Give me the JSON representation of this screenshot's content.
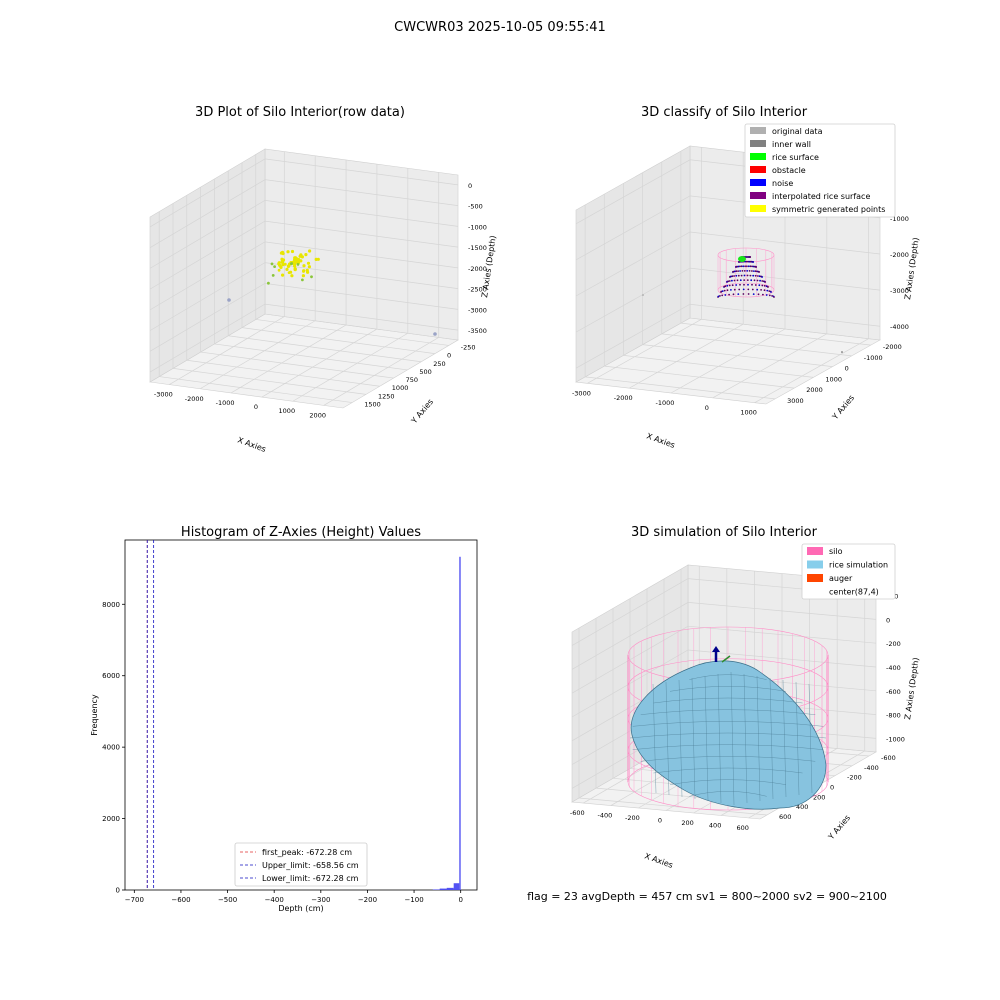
{
  "suptitle": "CWCWR03 2025-10-05 09:55:41",
  "status_line": "flag = 23  avgDepth = 457 cm  sv1 = 800~2000  sv2 = 900~2100",
  "chart_data": [
    {
      "type": "scatter3d",
      "title": "3D Plot of Silo Interior(row data)",
      "xlabel": "X Axies",
      "ylabel": "Y Axies",
      "zlabel": "Z Axies (Depth)",
      "x_ticks": [
        "-3000",
        "-2000",
        "-1000",
        "0",
        "1000",
        "2000"
      ],
      "y_ticks": [
        "-250",
        "0",
        "250",
        "500",
        "750",
        "1000",
        "1250",
        "1500"
      ],
      "z_ticks": [
        "0",
        "-500",
        "-1000",
        "-1500",
        "-2000",
        "-2500",
        "-3000",
        "-3500"
      ],
      "xlim": [
        -3300,
        2000
      ],
      "ylim": [
        -350,
        1600
      ],
      "zlim": [
        -3800,
        200
      ],
      "grid": true,
      "points_color": "#e8e600",
      "outlier_color": "#9aa3c6"
    },
    {
      "type": "scatter3d",
      "title": "3D classify of Silo Interior",
      "xlabel": "X Axies",
      "ylabel": "Y Axies",
      "zlabel": "Z Axies (Depth)",
      "x_ticks": [
        "-3000",
        "-2000",
        "-1000",
        "0",
        "1000"
      ],
      "y_ticks": [
        "-2000",
        "-1000",
        "0",
        "1000",
        "2000",
        "3000"
      ],
      "z_ticks": [
        "0",
        "-1000",
        "-2000",
        "-3000",
        "-4000"
      ],
      "xlim": [
        -3300,
        1600
      ],
      "ylim": [
        -2100,
        3000
      ],
      "zlim": [
        -4200,
        100
      ],
      "grid": true,
      "legend_position": "top-right",
      "legend": [
        {
          "label": "original data",
          "color": "#b0b0b0"
        },
        {
          "label": "inner wall",
          "color": "#808080"
        },
        {
          "label": "rice surface",
          "color": "#00ff00"
        },
        {
          "label": "obstacle",
          "color": "#ff0000"
        },
        {
          "label": "noise",
          "color": "#0000ff"
        },
        {
          "label": "interpolated rice surface",
          "color": "#800080"
        },
        {
          "label": "symmetric generated points",
          "color": "#ffff00"
        }
      ]
    },
    {
      "type": "histogram",
      "title": "Histogram of Z-Axies (Height) Values",
      "xlabel": "Depth (cm)",
      "ylabel": "Frequency",
      "xlim": [
        -720,
        35
      ],
      "ylim": [
        0,
        9800
      ],
      "x_ticks": [
        -700,
        -600,
        -500,
        -400,
        -300,
        -200,
        -100,
        0
      ],
      "y_ticks": [
        0,
        2000,
        4000,
        6000,
        8000
      ],
      "bar_color": "#4a4af2",
      "bins": [
        {
          "x0": -60,
          "x1": -45,
          "count": 15
        },
        {
          "x0": -45,
          "x1": -30,
          "count": 40
        },
        {
          "x0": -30,
          "x1": -15,
          "count": 60
        },
        {
          "x0": -15,
          "x1": -3,
          "count": 190
        },
        {
          "x0": -3,
          "x1": 0,
          "count": 9330
        }
      ],
      "vlines": [
        {
          "label": "first_peak: -672.28 cm",
          "x": -672.28,
          "color": "#e03030"
        },
        {
          "label": "Upper_limit: -658.56 cm",
          "x": -658.56,
          "color": "#1010c0"
        },
        {
          "label": "Lower_limit: -672.28 cm",
          "x": -672.28,
          "color": "#1010c0"
        }
      ],
      "legend_position": "lower-center"
    },
    {
      "type": "surface3d",
      "title": "3D simulation of Silo Interior",
      "xlabel": "X Axies",
      "ylabel": "Y Axies",
      "zlabel": "Z Axies (Depth)",
      "x_ticks": [
        "-600",
        "-400",
        "-200",
        "0",
        "200",
        "400",
        "600"
      ],
      "y_ticks": [
        "-600",
        "-400",
        "-200",
        "0",
        "200",
        "400",
        "600"
      ],
      "z_ticks": [
        "200",
        "0",
        "-200",
        "-400",
        "-600",
        "-800",
        "-1000"
      ],
      "xlim": [
        -650,
        700
      ],
      "ylim": [
        -650,
        700
      ],
      "zlim": [
        -1100,
        300
      ],
      "grid": true,
      "legend_position": "top-right",
      "legend": [
        {
          "label": "silo",
          "color": "#ff69b4"
        },
        {
          "label": "rice simulation",
          "color": "#87ceeb"
        },
        {
          "label": "auger",
          "color": "#ff4500"
        },
        {
          "label": "center(87,4)",
          "color": "#ffffff"
        }
      ]
    }
  ]
}
